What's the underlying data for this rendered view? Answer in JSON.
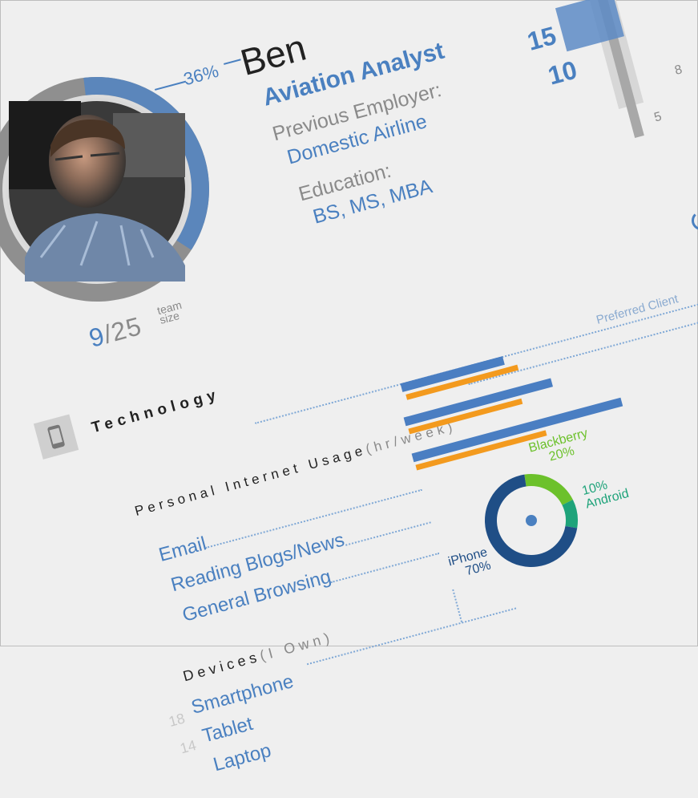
{
  "profile": {
    "name": "Ben",
    "title": "Aviation Analyst",
    "prev_employer_label": "Previous Employer:",
    "prev_employer": "Domestic Airline",
    "education_label": "Education:",
    "education": "BS, MS, MBA",
    "percent": "36%",
    "percent_value": 0.36,
    "team_num": "9",
    "team_sep": "/",
    "team_total": "25",
    "team_label1": "team",
    "team_label2": "size"
  },
  "top_chart": {
    "label_high": "15",
    "label_low": "10",
    "tick_8": "8",
    "tick_5": "5"
  },
  "technology": {
    "heading": "Technology",
    "internet_heading": "Personal Internet Usage",
    "internet_unit": "(hr/week)",
    "items": [
      "Email",
      "Reading Blogs/News",
      "General Browsing"
    ],
    "preferred_label": "Preferred Client",
    "devices_heading": "Devices",
    "devices_unit": "(I Own)",
    "devices": [
      {
        "num": "18",
        "label": "Smartphone"
      },
      {
        "num": "14",
        "label": "Tablet"
      },
      {
        "num": "",
        "label": "Laptop"
      }
    ]
  },
  "donut": {
    "slices": [
      {
        "name": "iPhone",
        "pct": "70%",
        "value": 70,
        "color": "#1f4e86"
      },
      {
        "name": "Blackberry",
        "pct": "20%",
        "value": 20,
        "color": "#6cc12b"
      },
      {
        "name": "Android",
        "pct": "10%",
        "value": 10,
        "color": "#1ea37a"
      }
    ]
  },
  "colors": {
    "accent": "#4a80c0",
    "orange": "#f39a1e",
    "navy": "#1f4e86"
  }
}
